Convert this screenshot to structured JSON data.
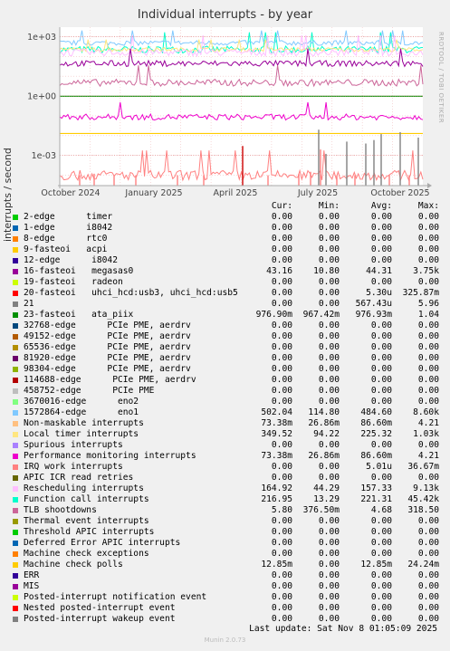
{
  "title": "Individual interrupts - by year",
  "side_label": "RRDTOOL / TOBI OETIKER",
  "legend_header": {
    "cur": "Cur:",
    "min": "Min:",
    "avg": "Avg:",
    "max": "Max:"
  },
  "legend": [
    {
      "name": "2-edge      timer",
      "color": "#00cc00",
      "cur": "0.00",
      "min": "0.00",
      "avg": "0.00",
      "max": "0.00"
    },
    {
      "name": "1-edge      i8042",
      "color": "#0066b3",
      "cur": "0.00",
      "min": "0.00",
      "avg": "0.00",
      "max": "0.00"
    },
    {
      "name": "8-edge      rtc0",
      "color": "#ff8000",
      "cur": "0.00",
      "min": "0.00",
      "avg": "0.00",
      "max": "0.00"
    },
    {
      "name": "9-fasteoi   acpi",
      "color": "#ffcc00",
      "cur": "0.00",
      "min": "0.00",
      "avg": "0.00",
      "max": "0.00"
    },
    {
      "name": "12-edge      i8042",
      "color": "#330099",
      "cur": "0.00",
      "min": "0.00",
      "avg": "0.00",
      "max": "0.00"
    },
    {
      "name": "16-fasteoi   megasas0",
      "color": "#990099",
      "cur": "43.16",
      "min": "10.80",
      "avg": "44.31",
      "max": "3.75k"
    },
    {
      "name": "19-fasteoi   radeon",
      "color": "#ccff00",
      "cur": "0.00",
      "min": "0.00",
      "avg": "0.00",
      "max": "0.00"
    },
    {
      "name": "20-fasteoi   uhci_hcd:usb3, uhci_hcd:usb5",
      "color": "#ff0000",
      "cur": "0.00",
      "min": "0.00",
      "avg": "5.30u",
      "max": "325.87m"
    },
    {
      "name": "21",
      "color": "#808080",
      "cur": "0.00",
      "min": "0.00",
      "avg": "567.43u",
      "max": "5.96"
    },
    {
      "name": "23-fasteoi   ata_piix",
      "color": "#008f00",
      "cur": "976.90m",
      "min": "967.42m",
      "avg": "976.93m",
      "max": "1.04"
    },
    {
      "name": "32768-edge      PCIe PME, aerdrv",
      "color": "#00487d",
      "cur": "0.00",
      "min": "0.00",
      "avg": "0.00",
      "max": "0.00"
    },
    {
      "name": "49152-edge      PCIe PME, aerdrv",
      "color": "#b35a00",
      "cur": "0.00",
      "min": "0.00",
      "avg": "0.00",
      "max": "0.00"
    },
    {
      "name": "65536-edge      PCIe PME, aerdrv",
      "color": "#b38f00",
      "cur": "0.00",
      "min": "0.00",
      "avg": "0.00",
      "max": "0.00"
    },
    {
      "name": "81920-edge      PCIe PME, aerdrv",
      "color": "#6b006b",
      "cur": "0.00",
      "min": "0.00",
      "avg": "0.00",
      "max": "0.00"
    },
    {
      "name": "98304-edge      PCIe PME, aerdrv",
      "color": "#8fb300",
      "cur": "0.00",
      "min": "0.00",
      "avg": "0.00",
      "max": "0.00"
    },
    {
      "name": "114688-edge      PCIe PME, aerdrv",
      "color": "#b30000",
      "cur": "0.00",
      "min": "0.00",
      "avg": "0.00",
      "max": "0.00"
    },
    {
      "name": "458752-edge      PCIe PME",
      "color": "#bebebe",
      "cur": "0.00",
      "min": "0.00",
      "avg": "0.00",
      "max": "0.00"
    },
    {
      "name": "3670016-edge      eno2",
      "color": "#80ff80",
      "cur": "0.00",
      "min": "0.00",
      "avg": "0.00",
      "max": "0.00"
    },
    {
      "name": "1572864-edge      eno1",
      "color": "#80c9ff",
      "cur": "502.04",
      "min": "114.80",
      "avg": "484.60",
      "max": "8.60k"
    },
    {
      "name": "Non-maskable interrupts",
      "color": "#ffc080",
      "cur": "73.38m",
      "min": "26.86m",
      "avg": "86.60m",
      "max": "4.21"
    },
    {
      "name": "Local timer interrupts",
      "color": "#ffe680",
      "cur": "349.52",
      "min": "94.22",
      "avg": "225.32",
      "max": "1.03k"
    },
    {
      "name": "Spurious interrupts",
      "color": "#aa80ff",
      "cur": "0.00",
      "min": "0.00",
      "avg": "0.00",
      "max": "0.00"
    },
    {
      "name": "Performance monitoring interrupts",
      "color": "#ee00cc",
      "cur": "73.38m",
      "min": "26.86m",
      "avg": "86.60m",
      "max": "4.21"
    },
    {
      "name": "IRQ work interrupts",
      "color": "#ff8080",
      "cur": "0.00",
      "min": "0.00",
      "avg": "5.01u",
      "max": "36.67m"
    },
    {
      "name": "APIC ICR read retries",
      "color": "#666600",
      "cur": "0.00",
      "min": "0.00",
      "avg": "0.00",
      "max": "0.00"
    },
    {
      "name": "Rescheduling interrupts",
      "color": "#ffbfff",
      "cur": "164.92",
      "min": "44.29",
      "avg": "157.33",
      "max": "9.13k"
    },
    {
      "name": "Function call interrupts",
      "color": "#00ffcc",
      "cur": "216.95",
      "min": "13.29",
      "avg": "221.31",
      "max": "45.42k"
    },
    {
      "name": "TLB shootdowns",
      "color": "#cc6699",
      "cur": "5.80",
      "min": "376.50m",
      "avg": "4.68",
      "max": "318.50"
    },
    {
      "name": "Thermal event interrupts",
      "color": "#999900",
      "cur": "0.00",
      "min": "0.00",
      "avg": "0.00",
      "max": "0.00"
    },
    {
      "name": "Threshold APIC interrupts",
      "color": "#00cc00",
      "cur": "0.00",
      "min": "0.00",
      "avg": "0.00",
      "max": "0.00"
    },
    {
      "name": "Deferred Error APIC interrupts",
      "color": "#0066b3",
      "cur": "0.00",
      "min": "0.00",
      "avg": "0.00",
      "max": "0.00"
    },
    {
      "name": "Machine check exceptions",
      "color": "#ff8000",
      "cur": "0.00",
      "min": "0.00",
      "avg": "0.00",
      "max": "0.00"
    },
    {
      "name": "Machine check polls",
      "color": "#ffcc00",
      "cur": "12.85m",
      "min": "0.00",
      "avg": "12.85m",
      "max": "24.24m"
    },
    {
      "name": "ERR",
      "color": "#330099",
      "cur": "0.00",
      "min": "0.00",
      "avg": "0.00",
      "max": "0.00"
    },
    {
      "name": "MIS",
      "color": "#990099",
      "cur": "0.00",
      "min": "0.00",
      "avg": "0.00",
      "max": "0.00"
    },
    {
      "name": "Posted-interrupt notification event",
      "color": "#ccff00",
      "cur": "0.00",
      "min": "0.00",
      "avg": "0.00",
      "max": "0.00"
    },
    {
      "name": "Nested posted-interrupt event",
      "color": "#ff0000",
      "cur": "0.00",
      "min": "0.00",
      "avg": "0.00",
      "max": "0.00"
    },
    {
      "name": "Posted-interrupt wakeup event",
      "color": "#808080",
      "cur": "0.00",
      "min": "0.00",
      "avg": "0.00",
      "max": "0.00"
    }
  ],
  "last_update": "Last update:  Sat Nov  8 01:05:09 2025",
  "footer": "Munin 2.0.73",
  "chart_data": {
    "type": "line",
    "title": "Individual interrupts - by year",
    "ylabel": "interrupts / second",
    "yscale": "log",
    "ylim": [
      3e-05,
      3000
    ],
    "y_ticks": [
      {
        "v": 1000,
        "label": "1e+03"
      },
      {
        "v": 1,
        "label": "1e+00"
      },
      {
        "v": 0.001,
        "label": "1e-03"
      }
    ],
    "x_ticks": [
      "October 2024",
      "January 2025",
      "April 2025",
      "July 2025",
      "October 2025"
    ],
    "grid": true,
    "series": [
      {
        "name": "Function call interrupts",
        "color": "#00ffcc",
        "level": 220,
        "noise": 0.35
      },
      {
        "name": "1572864-edge      eno1",
        "color": "#80c9ff",
        "level": 480,
        "noise": 0.25
      },
      {
        "name": "Local timer interrupts",
        "color": "#ffe680",
        "level": 225,
        "noise": 0.2
      },
      {
        "name": "Rescheduling interrupts",
        "color": "#ffbfff",
        "level": 157,
        "noise": 0.35
      },
      {
        "name": "16-fasteoi   megasas0",
        "color": "#990099",
        "level": 44,
        "noise": 0.3
      },
      {
        "name": "TLB shootdowns",
        "color": "#cc6699",
        "level": 4.7,
        "noise": 0.35
      },
      {
        "name": "23-fasteoi   ata_piix",
        "color": "#008f00",
        "level": 0.977,
        "noise": 0
      },
      {
        "name": "Performance monitoring interrupts",
        "color": "#ee00cc",
        "level": 0.087,
        "noise": 0.3
      },
      {
        "name": "Machine check polls",
        "color": "#ffcc00",
        "level": 0.0129,
        "noise": 0
      },
      {
        "name": "IRQ work interrupts",
        "color": "#ff8080",
        "level": 0.0001,
        "noise": 0.5
      },
      {
        "name": "21",
        "color": "#808080",
        "level": 3e-05,
        "noise": 0
      }
    ]
  }
}
